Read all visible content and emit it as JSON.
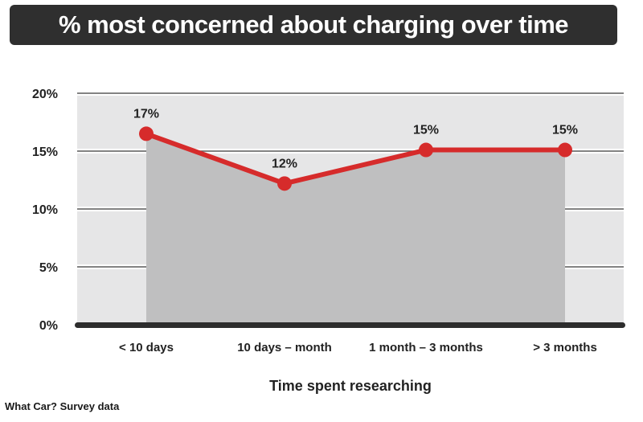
{
  "chart_data": {
    "type": "line",
    "title": "% most concerned about charging over time",
    "xlabel": "Time spent researching",
    "ylabel": "",
    "categories": [
      "< 10 days",
      "10 days – month",
      "1 month – 3 months",
      "> 3 months"
    ],
    "series": [
      {
        "values": [
          16.5,
          12.2,
          15.1,
          15.1
        ]
      }
    ],
    "data_labels": [
      "17%",
      "12%",
      "15%",
      "15%"
    ],
    "ylim": [
      0,
      20
    ],
    "yticks": [
      0,
      5,
      10,
      15,
      20
    ],
    "ytick_labels": [
      "0%",
      "5%",
      "10%",
      "15%",
      "20%"
    ],
    "grid": true,
    "line_color": "#d62b2b",
    "area_color": "#bfbfc0",
    "plot_bg_color": "#e6e6e7"
  },
  "footer": {
    "source": "What Car? Survey data"
  }
}
